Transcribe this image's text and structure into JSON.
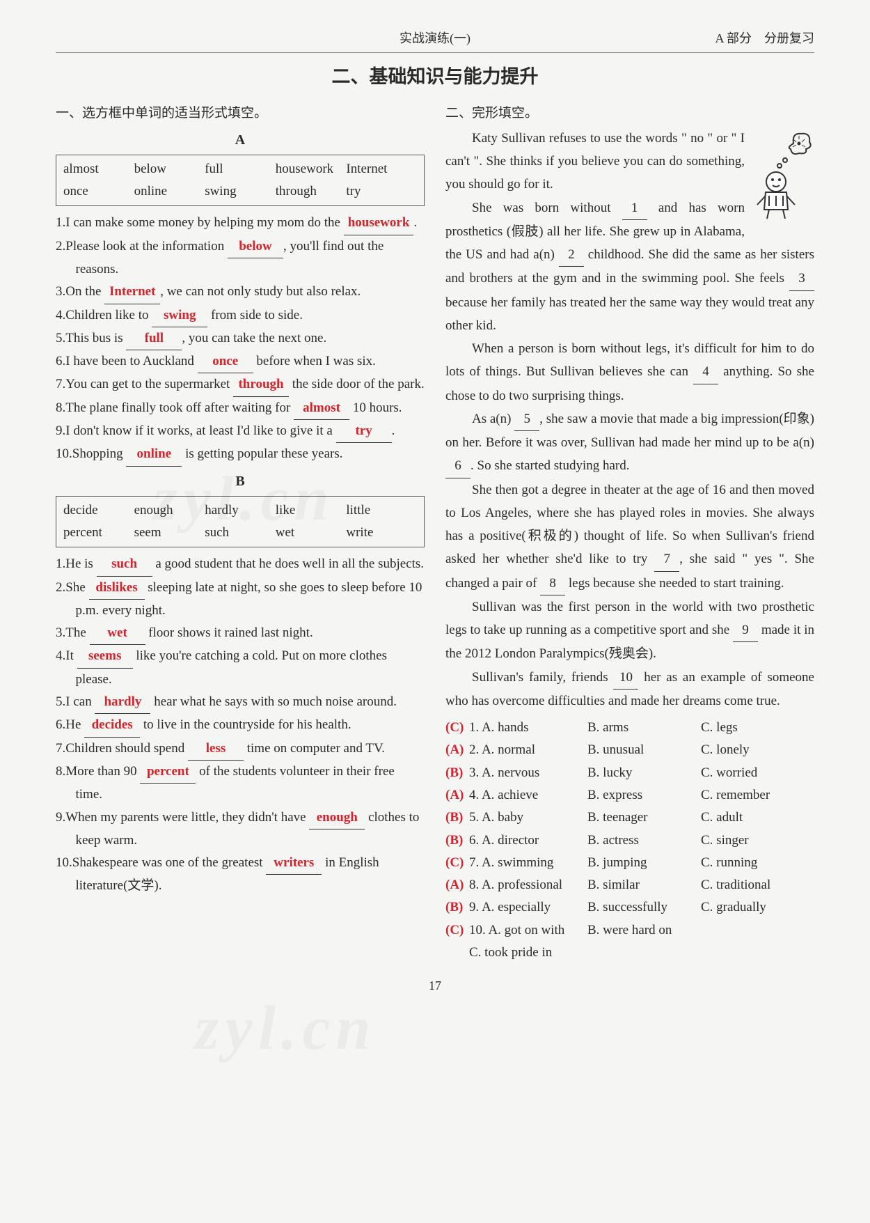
{
  "header": {
    "center": "实战演练(一)",
    "right": "A 部分　分册复习"
  },
  "main_title": "二、基础知识与能力提升",
  "left": {
    "section_title": "一、选方框中单词的适当形式填空。",
    "groupA": {
      "label": "A",
      "wordbox": [
        [
          "almost",
          "below",
          "full",
          "housework",
          "Internet"
        ],
        [
          "once",
          "online",
          "swing",
          "through",
          "try"
        ]
      ],
      "items": [
        {
          "n": "1",
          "pre": "I can make some money by helping my mom do the ",
          "ans": "housework",
          "post": "."
        },
        {
          "n": "2",
          "pre": "Please look at the information ",
          "ans": "below",
          "post": ", you'll find out the reasons."
        },
        {
          "n": "3",
          "pre": "On the ",
          "ans": "Internet",
          "post": ", we can not only study but also relax."
        },
        {
          "n": "4",
          "pre": "Children like to ",
          "ans": "swing",
          "post": " from side to side."
        },
        {
          "n": "5",
          "pre": "This bus is ",
          "ans": "full",
          "post": ", you can take the next one."
        },
        {
          "n": "6",
          "pre": "I have been to Auckland ",
          "ans": "once",
          "post": " before when I was six."
        },
        {
          "n": "7",
          "pre": "You can get to the supermarket ",
          "ans": "through",
          "post": " the side door of the park."
        },
        {
          "n": "8",
          "pre": "The plane finally took off after waiting for ",
          "ans": "almost",
          "post": " 10 hours."
        },
        {
          "n": "9",
          "pre": "I don't know if it works, at least I'd like to give it a ",
          "ans": "try",
          "post": "."
        },
        {
          "n": "10",
          "pre": "Shopping ",
          "ans": "online",
          "post": " is getting popular these years."
        }
      ]
    },
    "groupB": {
      "label": "B",
      "wordbox": [
        [
          "decide",
          "enough",
          "hardly",
          "like",
          "little"
        ],
        [
          "percent",
          "seem",
          "such",
          "wet",
          "write"
        ]
      ],
      "items": [
        {
          "n": "1",
          "pre": "He is ",
          "ans": "such",
          "post": " a good student that he does well in all the subjects."
        },
        {
          "n": "2",
          "pre": "She ",
          "ans": "dislikes",
          "post": " sleeping late at night, so she goes to sleep before 10 p.m. every night."
        },
        {
          "n": "3",
          "pre": "The ",
          "ans": "wet",
          "post": " floor shows it rained last night."
        },
        {
          "n": "4",
          "pre": "It ",
          "ans": "seems",
          "post": " like you're catching a cold. Put on more clothes please."
        },
        {
          "n": "5",
          "pre": "I can ",
          "ans": "hardly",
          "post": " hear what he says with so much noise around."
        },
        {
          "n": "6",
          "pre": "He ",
          "ans": "decides",
          "post": " to live in the countryside for his health."
        },
        {
          "n": "7",
          "pre": "Children should spend ",
          "ans": "less",
          "post": " time on computer and TV."
        },
        {
          "n": "8",
          "pre": "More than 90 ",
          "ans": "percent",
          "post": " of the students volunteer in their free time."
        },
        {
          "n": "9",
          "pre": "When my parents were little, they didn't have ",
          "ans": "enough",
          "post": " clothes to keep warm."
        },
        {
          "n": "10",
          "pre": "Shakespeare was one of the greatest ",
          "ans": "writers",
          "post": " in English literature(文学)."
        }
      ]
    }
  },
  "right": {
    "section_title": "二、完形填空。",
    "passage": {
      "p0": "Katy Sullivan refuses to use the words \" no \" or \" I can't \". She thinks if you believe you can do something, you should go for it.",
      "p1a": "She was born without ",
      "b1": "1",
      "p1b": " and has worn prosthetics (假肢) all her life. She grew up in Alabama, the US and had a(n) ",
      "b2": "2",
      "p1c": " childhood. She did the same as her sisters and brothers at the gym and in the swimming pool. She feels ",
      "b3": "3",
      "p1d": " because her family has treated her the same way they would treat any other kid.",
      "p2a": "When a person is born without legs, it's difficult for him to do lots of things. But Sullivan believes she can ",
      "b4": "4",
      "p2b": " anything. So she chose to do two surprising things.",
      "p3a": "As a(n) ",
      "b5": "5",
      "p3b": ", she saw a movie that made a big impression(印象) on her. Before it was over, Sullivan had made her mind up to be a(n) ",
      "b6": "6",
      "p3c": ". So she started studying hard.",
      "p4a": "She then got a degree in theater at the age of 16 and then moved to Los Angeles, where she has played roles in movies. She always has a positive(积极的) thought of life. So when Sullivan's friend asked her whether she'd like to try ",
      "b7": "7",
      "p4b": ", she said \" yes \". She changed a pair of ",
      "b8": "8",
      "p4c": " legs because she needed to start training.",
      "p5a": "Sullivan was the first person in the world with two prosthetic legs to take up running as a competitive sport and she ",
      "b9": "9",
      "p5b": " made it in the 2012 London Paralympics(残奥会).",
      "p6a": "Sullivan's family, friends ",
      "b10": "10",
      "p6b": " her as an example of someone who has overcome difficulties and made her dreams come true."
    },
    "choices": [
      {
        "ans": "C",
        "n": "1",
        "A": "A. hands",
        "B": "B. arms",
        "C": "C. legs"
      },
      {
        "ans": "A",
        "n": "2",
        "A": "A. normal",
        "B": "B. unusual",
        "C": "C. lonely"
      },
      {
        "ans": "B",
        "n": "3",
        "A": "A. nervous",
        "B": "B. lucky",
        "C": "C. worried"
      },
      {
        "ans": "A",
        "n": "4",
        "A": "A. achieve",
        "B": "B. express",
        "C": "C. remember"
      },
      {
        "ans": "B",
        "n": "5",
        "A": "A. baby",
        "B": "B. teenager",
        "C": "C. adult"
      },
      {
        "ans": "B",
        "n": "6",
        "A": "A. director",
        "B": "B. actress",
        "C": "C. singer"
      },
      {
        "ans": "C",
        "n": "7",
        "A": "A. swimming",
        "B": "B. jumping",
        "C": "C. running"
      },
      {
        "ans": "A",
        "n": "8",
        "A": "A. professional",
        "B": "B. similar",
        "C": "C. traditional"
      },
      {
        "ans": "B",
        "n": "9",
        "A": "A. especially",
        "B": "B. successfully",
        "C": "C. gradually"
      },
      {
        "ans": "C",
        "n": "10",
        "A": "A. got on with",
        "B": "B. were hard on",
        "C": "C. took pride in",
        "stacked": true
      }
    ]
  },
  "page_number": "17",
  "watermark": "zyl.cn"
}
